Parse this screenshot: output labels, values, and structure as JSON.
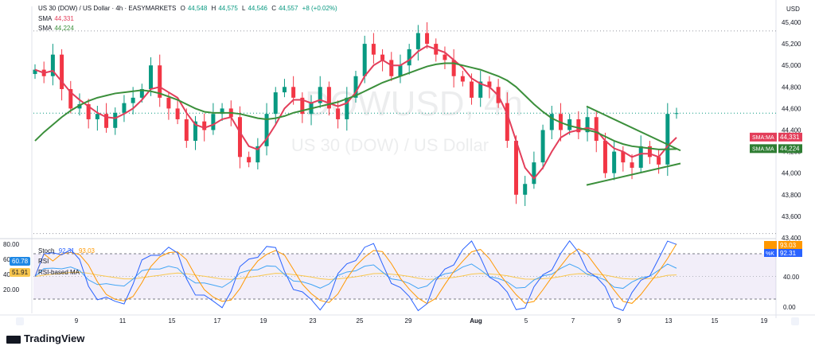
{
  "header": {
    "symbol": "US 30 (DOW) / US Dollar · 4h · EASYMARKETS",
    "open_label": "O",
    "open": "44,548",
    "high_label": "H",
    "high": "44,575",
    "low_label": "L",
    "low": "44,546",
    "close_label": "C",
    "close": "44,557",
    "change": "+8 (+0.02%)"
  },
  "sma_legend": [
    {
      "label": "SMA",
      "value": "44,331",
      "color": "#e33e5a"
    },
    {
      "label": "SMA",
      "value": "44,224",
      "color": "#3b8f3b"
    }
  ],
  "watermark": {
    "title": "DOWUSD, 4h",
    "subtitle": "US 30 (DOW) / US Dollar"
  },
  "price_axis": {
    "unit": "USD",
    "ticks": [
      "45,400",
      "45,200",
      "45,000",
      "44,800",
      "44,600",
      "44,400",
      "44,200",
      "44,000",
      "43,800",
      "43,600",
      "43,400"
    ]
  },
  "price_tags": [
    {
      "label": "SMA:MA",
      "value": "44,331",
      "color": "#e33e5a"
    },
    {
      "label": "SMA:MA",
      "value": "44,224",
      "color": "#2e7d32"
    }
  ],
  "osc_legend": {
    "stoch_label": "Stoch",
    "stoch_k": "92.31",
    "stoch_d": "93.03",
    "rsi_label": "RSI",
    "rsi_value": "60.78",
    "rsi_ma_label": "RSI-based MA",
    "rsi_ma_value": "51.91"
  },
  "osc_axis": {
    "left_ticks": [
      "80.00",
      "60.00",
      "40.00",
      "20.00"
    ],
    "right_ticks": [
      "80.00",
      "40.00",
      "0.00"
    ]
  },
  "osc_tags": [
    {
      "label": "%K",
      "value": "92.31",
      "color": "#2962ff"
    },
    {
      "label": "",
      "value": "93.03",
      "color": "#ff9800"
    }
  ],
  "time_axis": [
    "9",
    "11",
    "15",
    "17",
    "19",
    "23",
    "25",
    "29",
    "Aug",
    "5",
    "7",
    "9",
    "13",
    "15",
    "19"
  ],
  "brand": "TradingView",
  "chart_data": {
    "type": "candlestick",
    "title": "US 30 (DOW) / US Dollar · 4h · EASYMARKETS",
    "ylabel": "USD",
    "ylim": [
      43400,
      45500
    ],
    "x_ticks": [
      "9",
      "11",
      "15",
      "17",
      "19",
      "23",
      "25",
      "29",
      "Aug",
      "5",
      "7",
      "9",
      "13",
      "15",
      "19"
    ],
    "close_series": [
      44960,
      44900,
      45100,
      44780,
      44600,
      44640,
      44500,
      44550,
      44420,
      44560,
      44650,
      44700,
      44780,
      45000,
      44700,
      44600,
      44500,
      44300,
      44480,
      44400,
      44550,
      44600,
      44520,
      44150,
      44100,
      44250,
      44550,
      44750,
      44800,
      44700,
      44550,
      44650,
      44800,
      44600,
      44500,
      44700,
      44900,
      45200,
      45100,
      45050,
      44900,
      45000,
      45150,
      45300,
      45200,
      45100,
      45050,
      44900,
      44850,
      44700,
      44850,
      44800,
      44650,
      44300,
      43800,
      43900,
      44100,
      44400,
      44550,
      44400,
      44500,
      44380,
      44520,
      44300,
      44000,
      44200,
      44100,
      44050,
      44250,
      44150,
      44080,
      44550,
      44557
    ],
    "series": [
      {
        "name": "SMA",
        "label": "44,331",
        "values": [
          44960,
          44930,
          44950,
          44850,
          44750,
          44680,
          44620,
          44560,
          44520,
          44510,
          44550,
          44600,
          44680,
          44780,
          44800,
          44750,
          44700,
          44560,
          44450,
          44420,
          44450,
          44500,
          44520,
          44380,
          44250,
          44220,
          44320,
          44450,
          44600,
          44680,
          44680,
          44650,
          44680,
          44650,
          44620,
          44650,
          44750,
          44900,
          45000,
          45050,
          45000,
          45000,
          45050,
          45130,
          45180,
          45150,
          45120,
          45050,
          44980,
          44880,
          44830,
          44800,
          44720,
          44550,
          44300,
          44050,
          43950,
          44050,
          44200,
          44330,
          44380,
          44400,
          44420,
          44400,
          44300,
          44230,
          44200,
          44150,
          44180,
          44180,
          44150,
          44250,
          44331
        ]
      },
      {
        "name": "SMA",
        "label": "44,224",
        "values": [
          44300,
          44380,
          44450,
          44520,
          44580,
          44630,
          44670,
          44700,
          44720,
          44740,
          44750,
          44760,
          44770,
          44760,
          44740,
          44710,
          44680,
          44640,
          44600,
          44570,
          44560,
          44560,
          44560,
          44550,
          44530,
          44510,
          44500,
          44510,
          44530,
          44560,
          44580,
          44600,
          44620,
          44640,
          44660,
          44690,
          44720,
          44760,
          44800,
          44840,
          44870,
          44900,
          44930,
          44960,
          44990,
          45010,
          45020,
          45020,
          45000,
          44980,
          44960,
          44930,
          44900,
          44860,
          44800,
          44720,
          44640,
          44570,
          44510,
          44470,
          44440,
          44420,
          44400,
          44380,
          44340,
          44300,
          44270,
          44250,
          44240,
          44230,
          44220,
          44222,
          44224
        ]
      }
    ],
    "oscillators": {
      "stoch": {
        "k": 92.31,
        "d": 93.03
      },
      "rsi": 60.78,
      "rsi_ma": 51.91,
      "bands": [
        80,
        20
      ]
    }
  }
}
